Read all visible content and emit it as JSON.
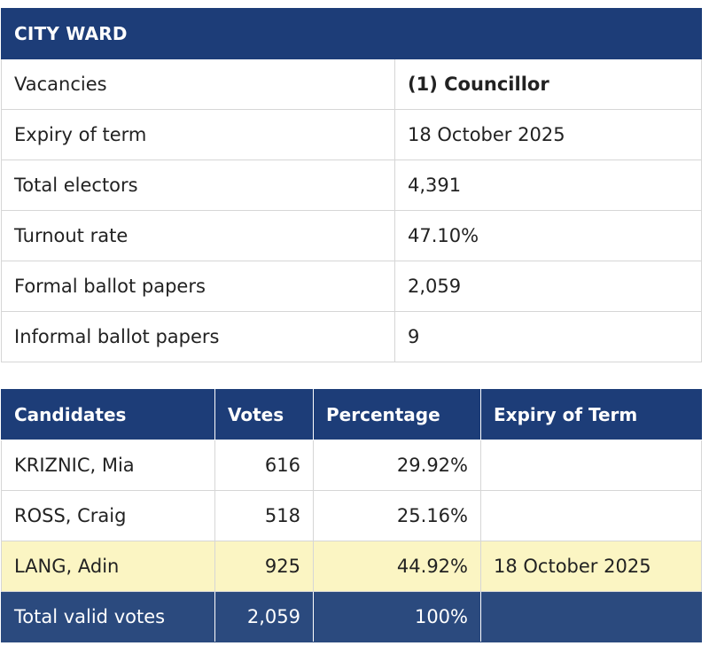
{
  "ward": {
    "title": "CITY WARD",
    "rows": [
      {
        "label": "Vacancies",
        "value": "(1) Councillor"
      },
      {
        "label": "Expiry of term",
        "value": "18 October 2025"
      },
      {
        "label": "Total electors",
        "value": "4,391"
      },
      {
        "label": "Turnout rate",
        "value": "47.10%"
      },
      {
        "label": "Formal ballot papers",
        "value": "2,059"
      },
      {
        "label": "Informal ballot papers",
        "value": "9"
      }
    ]
  },
  "results": {
    "headers": {
      "candidates": "Candidates",
      "votes": "Votes",
      "percentage": "Percentage",
      "expiry": "Expiry of Term"
    },
    "candidates": [
      {
        "name": "KRIZNIC, Mia",
        "votes": "616",
        "percentage": "29.92%",
        "expiry": ""
      },
      {
        "name": "ROSS, Craig",
        "votes": "518",
        "percentage": "25.16%",
        "expiry": ""
      },
      {
        "name": "LANG, Adin",
        "votes": "925",
        "percentage": "44.92%",
        "expiry": "18 October 2025"
      }
    ],
    "total": {
      "label": "Total valid votes",
      "votes": "2,059",
      "percentage": "100%",
      "expiry": ""
    }
  },
  "colors": {
    "header_bg": "#1d3d78",
    "total_row_bg": "#2b4a7e",
    "elected_row_bg": "#fbf5c3"
  }
}
